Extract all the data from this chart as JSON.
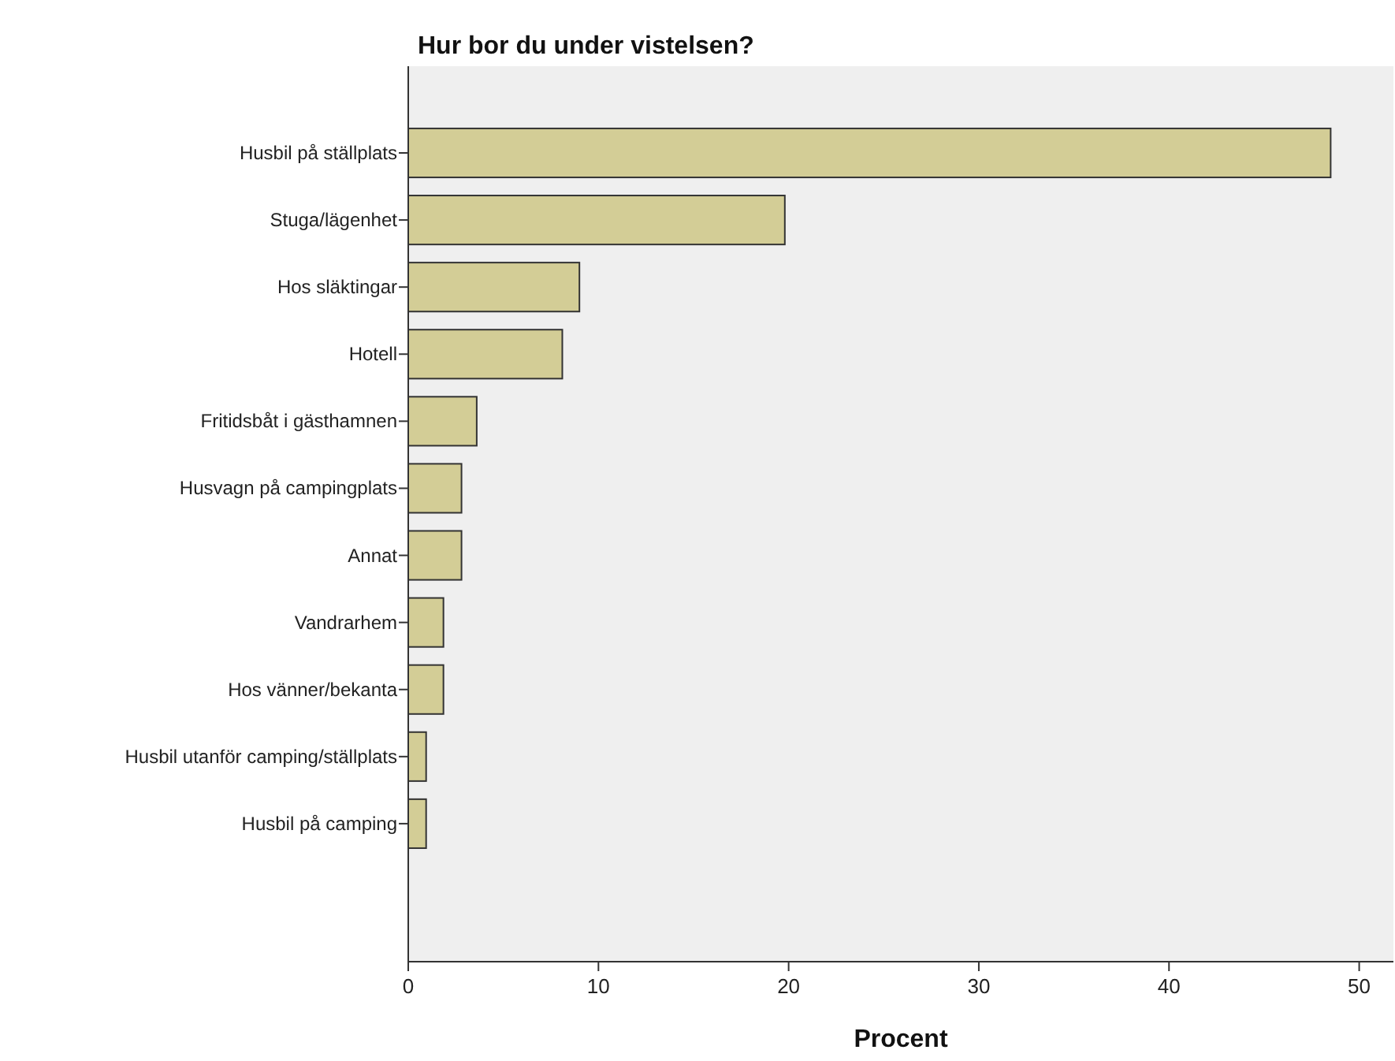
{
  "chart_data": {
    "type": "bar",
    "orientation": "horizontal",
    "title": "Hur bor du under vistelsen?",
    "xlabel": "Procent",
    "categories": [
      "Husbil på ställplats",
      "Stuga/lägenhet",
      "Hos släktingar",
      "Hotell",
      "Fritidsbåt i gästhamnen",
      "Husvagn på campingplats",
      "Annat",
      "Vandrarhem",
      "Hos vänner/bekanta",
      "Husbil utanför camping/ställplats",
      "Husbil på camping"
    ],
    "values": [
      48.5,
      19.8,
      9.0,
      8.1,
      3.6,
      2.8,
      2.8,
      1.85,
      1.85,
      0.94,
      0.94
    ],
    "color": "#d3cd96",
    "xlim": [
      0,
      51.8
    ],
    "xticks": [
      0,
      10,
      20,
      30,
      40,
      50
    ],
    "grid": false
  }
}
